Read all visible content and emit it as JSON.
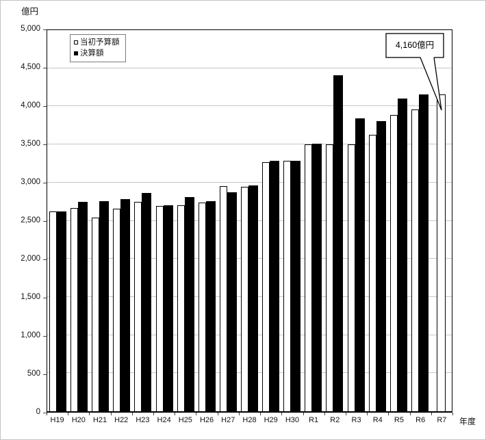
{
  "chart": {
    "unit_label": "億円",
    "xaxis_title": "年度",
    "callout_text": "4,160億円",
    "legend": {
      "budget_label": "当初予算額",
      "settlement_label": "決算額"
    }
  },
  "colors": {
    "budget_bar_fill": "#ffffff",
    "settlement_bar_fill": "#000000",
    "bar_border": "#000000",
    "gridline": "#c6c6c6"
  },
  "chart_data": {
    "type": "bar",
    "title": "",
    "xlabel": "年度",
    "ylabel": "億円",
    "ylim": [
      0,
      5000
    ],
    "ytick_interval": 500,
    "grid": true,
    "legend_position": "top-left-inside",
    "categories": [
      "H19",
      "H20",
      "H21",
      "H22",
      "H23",
      "H24",
      "H25",
      "H26",
      "H27",
      "H28",
      "H29",
      "H30",
      "R1",
      "R2",
      "R3",
      "R4",
      "R5",
      "R6",
      "R7"
    ],
    "series": [
      {
        "name": "当初予算額",
        "values": [
          2620,
          2670,
          2540,
          2660,
          2750,
          2690,
          2700,
          2740,
          2950,
          2940,
          3270,
          3290,
          3500,
          3500,
          3500,
          3630,
          3890,
          3960,
          4160
        ]
      },
      {
        "name": "決算額",
        "values": [
          2620,
          2750,
          2760,
          2780,
          2860,
          2700,
          2810,
          2760,
          2870,
          2960,
          3290,
          3290,
          3510,
          4410,
          3840,
          3810,
          4100,
          4160,
          null
        ]
      }
    ],
    "annotation": {
      "text": "4,160億円",
      "target_category": "R7",
      "target_series": "当初予算額",
      "value": 4160
    }
  }
}
